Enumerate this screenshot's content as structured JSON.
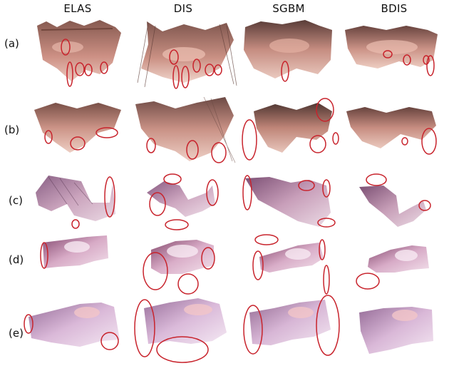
{
  "columns": [
    "ELAS",
    "DIS",
    "SGBM",
    "BDIS"
  ],
  "rows": [
    "(a)",
    "(b)",
    "(c)",
    "(d)",
    "(e)"
  ],
  "colors": {
    "highlight_circle": "#c8232c",
    "tissue_rows_ab": "#b07b6e",
    "tissue_rows_cde": "#a25a86",
    "background": "#ffffff"
  }
}
